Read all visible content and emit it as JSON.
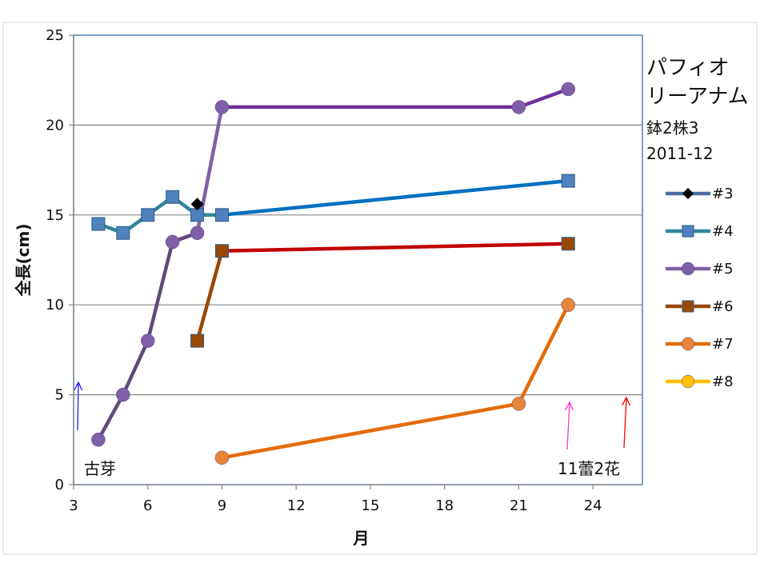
{
  "chart_data": {
    "type": "line",
    "title_lines": [
      "パフィオ",
      "リーアナム",
      "鉢2株3",
      "2011-12"
    ],
    "xlabel": "月",
    "ylabel": "全長(cm)",
    "xlim": [
      3,
      26
    ],
    "ylim": [
      0,
      25
    ],
    "xticks": [
      "3",
      "6",
      "9",
      "12",
      "15",
      "18",
      "21",
      "24"
    ],
    "xtick_values": [
      3,
      6,
      9,
      12,
      15,
      18,
      21,
      24
    ],
    "yticks": [
      "0",
      "5",
      "10",
      "15",
      "20",
      "25"
    ],
    "ytick_values": [
      0,
      5,
      10,
      15,
      20,
      25
    ],
    "grid": "horizontal",
    "legend_position": "right",
    "series": [
      {
        "name": "#3",
        "color": "#4a6fa5",
        "marker": "diamond",
        "marker_color": "#000000",
        "points": [
          [
            8,
            15.6
          ]
        ]
      },
      {
        "name": "#4",
        "color": "#31859c",
        "marker": "square",
        "marker_color": "#4f81bd",
        "points": [
          [
            4,
            14.5
          ],
          [
            5,
            14
          ],
          [
            6,
            15
          ],
          [
            7,
            16
          ],
          [
            8,
            15
          ],
          [
            9,
            15
          ],
          [
            23,
            16.9
          ]
        ],
        "line_colors": [
          "#31859c",
          "#31859c",
          "#31859c",
          "#31859c",
          "#31859c",
          "#0070c0"
        ]
      },
      {
        "name": "#5",
        "color": "#7f60a8",
        "marker": "circle",
        "marker_color": "#7f60a8",
        "points": [
          [
            4,
            2.5
          ],
          [
            5,
            5
          ],
          [
            6,
            8
          ],
          [
            7,
            13.5
          ],
          [
            8,
            14
          ],
          [
            9,
            21
          ],
          [
            21,
            21
          ],
          [
            23,
            22
          ]
        ],
        "line_colors": [
          "#604a7b",
          "#604a7b",
          "#604a7b",
          "#604a7b",
          "#7f60a8",
          "#7030a0",
          "#7030a0"
        ]
      },
      {
        "name": "#6",
        "color": "#984807",
        "marker": "square",
        "marker_color": "#984807",
        "points": [
          [
            8,
            8
          ],
          [
            9,
            13
          ],
          [
            23,
            13.4
          ]
        ],
        "line_colors": [
          "#984807",
          "#c00000"
        ]
      },
      {
        "name": "#7",
        "color": "#e46c0a",
        "marker": "circle",
        "marker_color": "#e6843a",
        "points": [
          [
            9,
            1.5
          ],
          [
            21,
            4.5
          ],
          [
            23,
            10
          ]
        ]
      },
      {
        "name": "#8",
        "color": "#ffc000",
        "marker": "circle",
        "marker_color": "#ffc000",
        "points": []
      }
    ],
    "annotations": [
      {
        "text": "古芽",
        "x": 3.1,
        "y": 0.5
      },
      {
        "text": "11蕾2花",
        "x": 23,
        "y": 0.5
      }
    ]
  }
}
